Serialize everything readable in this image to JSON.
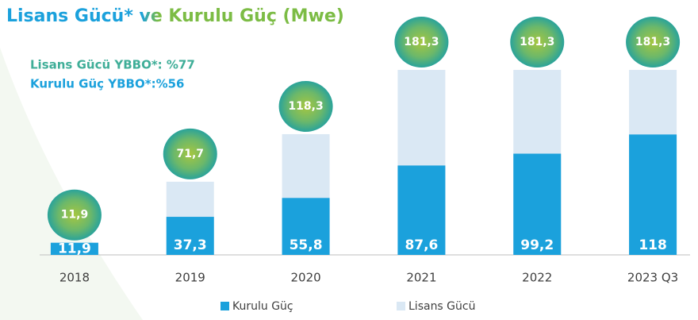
{
  "chart_data": {
    "type": "bar",
    "title": "Lisans Gücü* ve Kurulu Güç (Mwe)",
    "annotations": [
      "Lisans Gücü YBBO*: %77",
      "Kurulu Güç YBBO*:%56"
    ],
    "categories": [
      "2018",
      "2019",
      "2020",
      "2021",
      "2022",
      "2023 Q3"
    ],
    "series": [
      {
        "name": "Kurulu Güç",
        "color": "#1ba1dc",
        "values": [
          11.9,
          37.3,
          55.8,
          87.6,
          99.2,
          118
        ],
        "value_labels": [
          "11,9",
          "37,3",
          "55,8",
          "87,6",
          "99,2",
          "118"
        ]
      },
      {
        "name": "Lisans Gücü",
        "color": "#dae8f4",
        "values": [
          11.9,
          71.7,
          118.3,
          181.3,
          181.3,
          181.3
        ],
        "value_labels": [
          "11,9",
          "71,7",
          "118,3",
          "181,3",
          "181,3",
          "181,3"
        ]
      }
    ],
    "ylim": [
      0,
      200
    ],
    "legend": "bottom"
  }
}
